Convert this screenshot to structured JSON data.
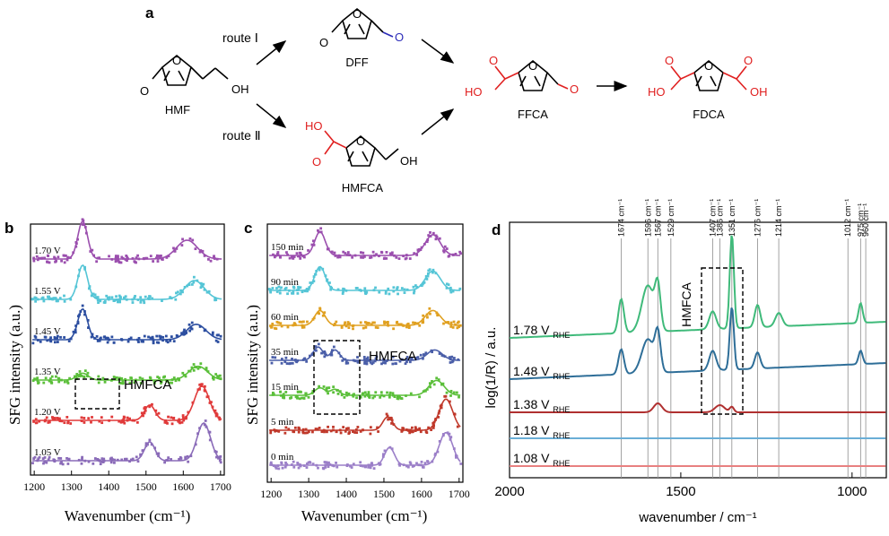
{
  "scheme": {
    "panel_label": "a",
    "route1": "route Ⅰ",
    "route2": "route Ⅱ",
    "compounds": [
      "HMF",
      "DFF",
      "HMFCA",
      "FFCA",
      "FDCA"
    ],
    "atoms": {
      "O": "O",
      "OH": "OH",
      "HO": "HO"
    },
    "colors": {
      "blue": "#2b2bb8",
      "red": "#e02020",
      "black": "#000000"
    }
  },
  "panel_b": {
    "label": "b",
    "ylabel": "SFG intensity (a.u.)",
    "xlabel": "Wavenumber (cm⁻¹)",
    "annotation": "HMFCA",
    "xticks": [
      "1200",
      "1300",
      "1400",
      "1500",
      "1600",
      "1700"
    ],
    "chart_data": {
      "type": "line",
      "xlim": [
        1190,
        1710
      ],
      "series": [
        {
          "name": "1.70 V",
          "color": "#9b4fae",
          "offset": 5,
          "peaks": [
            [
              1330,
              1.1,
              13
            ],
            [
              1610,
              0.55,
              28
            ]
          ]
        },
        {
          "name": "1.55 V",
          "color": "#55c5d6",
          "offset": 4,
          "peaks": [
            [
              1330,
              1.0,
              13
            ],
            [
              1630,
              0.55,
              26
            ]
          ]
        },
        {
          "name": "1.45 V",
          "color": "#2c4ea0",
          "offset": 3,
          "peaks": [
            [
              1330,
              0.9,
              13
            ],
            [
              1635,
              0.45,
              26
            ]
          ]
        },
        {
          "name": "1.35 V",
          "color": "#5bbf3a",
          "offset": 2,
          "peaks": [
            [
              1330,
              0.2,
              15
            ],
            [
              1640,
              0.4,
              25
            ]
          ]
        },
        {
          "name": "1.20 V",
          "color": "#e03a3a",
          "offset": 1,
          "peaks": [
            [
              1510,
              0.45,
              14
            ],
            [
              1650,
              1.0,
              20
            ]
          ]
        },
        {
          "name": "1.05 V",
          "color": "#8a6bb8",
          "offset": 0,
          "peaks": [
            [
              1510,
              0.55,
              14
            ],
            [
              1655,
              1.1,
              18
            ]
          ]
        }
      ]
    }
  },
  "panel_c": {
    "label": "c",
    "ylabel": "SFG intensity (a.u.)",
    "xlabel": "Wavenumber (cm⁻¹)",
    "annotation": "HMFCA",
    "xticks": [
      "1200",
      "1300",
      "1400",
      "1500",
      "1600",
      "1700"
    ],
    "chart_data": {
      "type": "line",
      "xlim": [
        1190,
        1710
      ],
      "series": [
        {
          "name": "150 min",
          "color": "#9b4fae",
          "offset": 6,
          "peaks": [
            [
              1330,
              0.8,
              14
            ],
            [
              1630,
              0.7,
              20
            ]
          ]
        },
        {
          "name": "90 min",
          "color": "#55c5d6",
          "offset": 5,
          "peaks": [
            [
              1330,
              0.8,
              14
            ],
            [
              1630,
              0.65,
              20
            ]
          ]
        },
        {
          "name": "60 min",
          "color": "#e0a020",
          "offset": 4,
          "peaks": [
            [
              1330,
              0.5,
              14
            ],
            [
              1630,
              0.5,
              20
            ]
          ]
        },
        {
          "name": "35 min",
          "color": "#4a5ea8",
          "offset": 3,
          "peaks": [
            [
              1325,
              0.45,
              13
            ],
            [
              1370,
              0.35,
              12
            ],
            [
              1635,
              0.35,
              20
            ]
          ]
        },
        {
          "name": "15 min",
          "color": "#5bbf3a",
          "offset": 2,
          "peaks": [
            [
              1330,
              0.25,
              14
            ],
            [
              1370,
              0.2,
              12
            ],
            [
              1640,
              0.5,
              20
            ]
          ]
        },
        {
          "name": "5 min",
          "color": "#c0392b",
          "offset": 1,
          "peaks": [
            [
              1510,
              0.45,
              13
            ],
            [
              1665,
              1.05,
              18
            ]
          ]
        },
        {
          "name": "0 min",
          "color": "#9b7fc8",
          "offset": 0,
          "peaks": [
            [
              1515,
              0.6,
              13
            ],
            [
              1665,
              1.1,
              18
            ]
          ]
        }
      ]
    }
  },
  "panel_d": {
    "label": "d",
    "ylabel": "log(1/R) / a.u.",
    "xlabel": "wavenumber / cm⁻¹",
    "annotation": "HMFCA",
    "xticks": [
      "2000",
      "1500",
      "1000"
    ],
    "sub": "RHE",
    "vlines": [
      {
        "label": "1674 cm⁻¹",
        "x": 1674
      },
      {
        "label": "1596 cm⁻¹",
        "x": 1596
      },
      {
        "label": "1567 cm⁻¹",
        "x": 1567
      },
      {
        "label": "1529 cm⁻¹",
        "x": 1529
      },
      {
        "label": "1407 cm⁻¹",
        "x": 1407
      },
      {
        "label": "1386 cm⁻¹",
        "x": 1386
      },
      {
        "label": "1351 cm⁻¹",
        "x": 1351
      },
      {
        "label": "1276 cm⁻¹",
        "x": 1276
      },
      {
        "label": "1214 cm⁻¹",
        "x": 1214
      },
      {
        "label": "1012 cm⁻¹",
        "x": 1012
      },
      {
        "label": "975 cm⁻¹",
        "x": 975
      },
      {
        "label": "960 cm⁻¹",
        "x": 960
      }
    ],
    "chart_data": {
      "type": "line",
      "xlim": [
        2000,
        900
      ],
      "series": [
        {
          "name": "1.78 V",
          "color": "#3fba7a",
          "offset": 4
        },
        {
          "name": "1.48 V",
          "color": "#2e6e98",
          "offset": 3
        },
        {
          "name": "1.38 V",
          "color": "#b03030",
          "offset": 2
        },
        {
          "name": "1.18 V",
          "color": "#6aaed6",
          "offset": 1
        },
        {
          "name": "1.08 V",
          "color": "#e88080",
          "offset": 0
        }
      ]
    }
  }
}
